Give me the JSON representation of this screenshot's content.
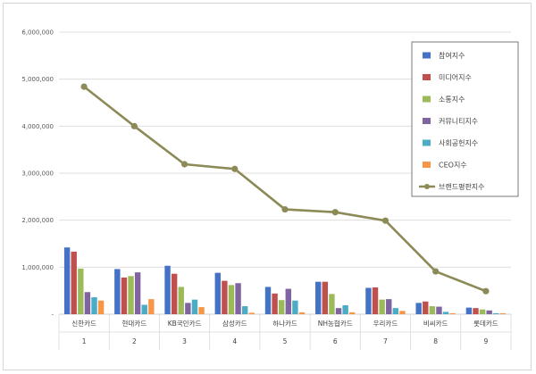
{
  "chart_data": {
    "type": "bar",
    "categories": [
      "신한카드",
      "현대카드",
      "KB국민카드",
      "삼성카드",
      "하나카드",
      "NH농협카드",
      "우리카드",
      "비씨카드",
      "롯데카드"
    ],
    "category_numbers": [
      "1",
      "2",
      "3",
      "4",
      "5",
      "6",
      "7",
      "8",
      "9"
    ],
    "ylim": [
      0,
      6000000
    ],
    "yticks": [
      0,
      1000000,
      2000000,
      3000000,
      4000000,
      5000000,
      6000000
    ],
    "ytick_labels": [
      "-",
      "1,000,000",
      "2,000,000",
      "3,000,000",
      "4,000,000",
      "5,000,000",
      "6,000,000"
    ],
    "grid": true,
    "legend_position": "right",
    "series": [
      {
        "name": "참여지수",
        "color": "#4472C4",
        "kind": "bar",
        "values": [
          1420000,
          960000,
          1030000,
          880000,
          580000,
          690000,
          560000,
          240000,
          140000
        ]
      },
      {
        "name": "미디어지수",
        "color": "#C0504D",
        "kind": "bar",
        "values": [
          1330000,
          780000,
          860000,
          710000,
          440000,
          690000,
          570000,
          270000,
          130000
        ]
      },
      {
        "name": "소통지수",
        "color": "#9BBB59",
        "kind": "bar",
        "values": [
          970000,
          810000,
          580000,
          620000,
          300000,
          430000,
          310000,
          170000,
          100000
        ]
      },
      {
        "name": "커뮤니티지수",
        "color": "#8064A2",
        "kind": "bar",
        "values": [
          470000,
          890000,
          240000,
          660000,
          540000,
          130000,
          320000,
          160000,
          80000
        ]
      },
      {
        "name": "사회공헌지수",
        "color": "#4BACC6",
        "kind": "bar",
        "values": [
          360000,
          200000,
          310000,
          170000,
          290000,
          190000,
          130000,
          50000,
          20000
        ]
      },
      {
        "name": "CEO지수",
        "color": "#F79646",
        "kind": "bar",
        "values": [
          290000,
          320000,
          150000,
          30000,
          40000,
          40000,
          70000,
          20000,
          20000
        ]
      },
      {
        "name": "브랜드평판지수",
        "color": "#8C8A56",
        "kind": "line",
        "values": [
          4840000,
          4000000,
          3190000,
          3090000,
          2230000,
          2170000,
          1990000,
          910000,
          490000
        ]
      }
    ]
  }
}
